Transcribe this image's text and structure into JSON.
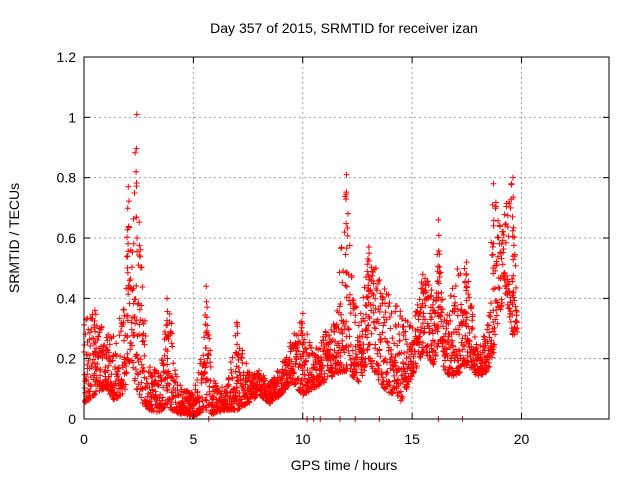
{
  "chart_data": {
    "type": "scatter",
    "title": "Day 357 of 2015, SRMTID for receiver izan",
    "xlabel": "GPS time / hours",
    "ylabel": "SRMTID / TECUs",
    "xlim": [
      0,
      24
    ],
    "ylim": [
      0,
      1.2
    ],
    "xticks": [
      0,
      5,
      10,
      15,
      20
    ],
    "xtick_labels": [
      "0",
      "5",
      "10",
      "15",
      "20"
    ],
    "yticks": [
      0,
      0.2,
      0.4,
      0.6,
      0.8,
      1.0,
      1.2
    ],
    "ytick_labels": [
      "0",
      "0.2",
      "0.4",
      "0.6",
      "0.8",
      "1",
      "1.2"
    ],
    "grid": true,
    "marker": "plus",
    "series": [
      {
        "name": "SRMTID",
        "color": "#ff0000",
        "envelope_hours": [
          0.0,
          0.5,
          1.0,
          1.5,
          1.9,
          2.0,
          2.2,
          2.4,
          2.7,
          3.0,
          3.5,
          3.8,
          4.0,
          4.3,
          4.7,
          5.0,
          5.4,
          5.6,
          5.8,
          6.0,
          6.5,
          7.0,
          7.5,
          8.0,
          8.5,
          9.0,
          9.5,
          10.0,
          10.5,
          11.0,
          11.5,
          12.0,
          12.3,
          12.6,
          13.0,
          13.5,
          14.0,
          14.5,
          15.0,
          15.5,
          16.0,
          16.2,
          16.5,
          17.0,
          17.5,
          18.0,
          18.5,
          18.7,
          19.0,
          19.3,
          19.6,
          19.8
        ],
        "envelope_high": [
          0.33,
          0.36,
          0.28,
          0.28,
          0.45,
          0.77,
          0.65,
          1.01,
          0.4,
          0.18,
          0.15,
          0.4,
          0.32,
          0.12,
          0.1,
          0.08,
          0.22,
          0.44,
          0.18,
          0.12,
          0.1,
          0.32,
          0.16,
          0.16,
          0.12,
          0.18,
          0.28,
          0.35,
          0.22,
          0.3,
          0.32,
          0.81,
          0.4,
          0.35,
          0.57,
          0.48,
          0.4,
          0.36,
          0.3,
          0.48,
          0.45,
          0.66,
          0.32,
          0.5,
          0.52,
          0.22,
          0.32,
          0.78,
          0.66,
          0.72,
          0.8,
          0.4
        ],
        "envelope_low": [
          0.05,
          0.08,
          0.1,
          0.05,
          0.1,
          0.2,
          0.15,
          0.1,
          0.05,
          0.03,
          0.02,
          0.05,
          0.03,
          0.02,
          0.01,
          0.01,
          0.02,
          0.03,
          0.01,
          0.02,
          0.03,
          0.03,
          0.05,
          0.08,
          0.05,
          0.08,
          0.12,
          0.08,
          0.1,
          0.12,
          0.15,
          0.16,
          0.14,
          0.12,
          0.2,
          0.12,
          0.08,
          0.06,
          0.14,
          0.22,
          0.18,
          0.25,
          0.15,
          0.14,
          0.18,
          0.14,
          0.16,
          0.22,
          0.35,
          0.4,
          0.28,
          0.28
        ],
        "zero_points_hours": [
          5.7,
          10.2,
          10.5,
          10.8,
          11.7,
          12.4,
          13.5,
          16.2,
          17.3
        ]
      }
    ]
  }
}
